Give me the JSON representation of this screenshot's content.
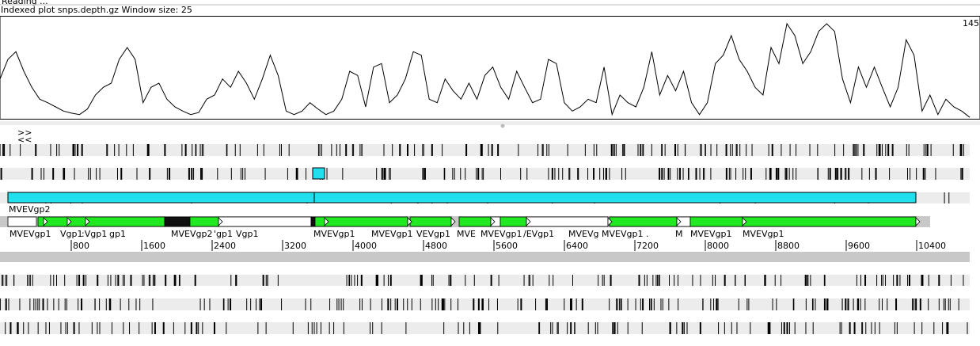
{
  "header": {
    "status": "Reading ...",
    "title": "Indexed plot snps.depth.gz  Window size: 25"
  },
  "plot": {
    "max_label": 145,
    "ylim": [
      0,
      145
    ],
    "values": [
      57,
      85,
      96,
      68,
      45,
      28,
      23,
      17,
      11,
      8,
      6,
      14,
      34,
      45,
      51,
      85,
      102,
      85,
      23,
      45,
      51,
      28,
      17,
      11,
      6,
      9,
      28,
      34,
      57,
      45,
      68,
      51,
      28,
      57,
      91,
      62,
      11,
      6,
      11,
      23,
      14,
      6,
      11,
      28,
      68,
      62,
      17,
      74,
      79,
      23,
      34,
      57,
      96,
      91,
      28,
      23,
      57,
      40,
      28,
      51,
      28,
      62,
      74,
      45,
      28,
      68,
      45,
      23,
      28,
      85,
      79,
      23,
      11,
      17,
      28,
      23,
      74,
      6,
      34,
      23,
      17,
      45,
      96,
      34,
      62,
      40,
      68,
      23,
      6,
      23,
      79,
      91,
      119,
      85,
      68,
      45,
      34,
      102,
      79,
      136,
      119,
      79,
      96,
      125,
      136,
      125,
      57,
      23,
      74,
      45,
      74,
      45,
      17,
      45,
      113,
      91,
      11,
      34,
      6,
      28,
      17,
      11,
      2
    ]
  },
  "strand_buttons": [
    ">>",
    "<<"
  ],
  "feature_top": {
    "label": "MVEVgp2"
  },
  "gene_labels": [
    "MVEVgp1",
    "Vgp1",
    ":Vgp1",
    "gp1",
    "MVEVgp2",
    "'gp1",
    "Vgp1",
    "MVEVgp1",
    "MVEVgp1",
    "VEVgp1",
    "MVE",
    "MVEVgp1",
    "/EVgp1",
    "MVEVg",
    "MVEVgp1 .",
    "M",
    "MVEVgp1",
    "MVEVgp1"
  ],
  "ruler": {
    "ticks": [
      800,
      1600,
      2400,
      3200,
      4000,
      4800,
      5600,
      6400,
      7200,
      8000,
      8800,
      9600,
      10400
    ]
  }
}
